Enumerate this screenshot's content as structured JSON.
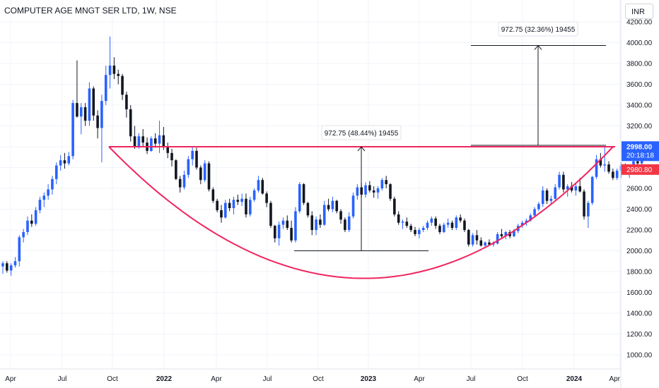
{
  "header": {
    "title": "COMPUTER AGE MNGT SER LTD, 1W, NSE",
    "currency": "INR"
  },
  "price_axis": {
    "last_price": "2998.00",
    "countdown": "20:18:18",
    "marker_price": "2980.80",
    "last_price_color": "#2962ff",
    "marker_color": "#f23645"
  },
  "annotations": {
    "measure_1": "972.75 (48.44%) 19455",
    "measure_2": "972.75 (32.36%) 19455"
  },
  "colors": {
    "up": "#2962ff",
    "down": "#131722",
    "pattern_line": "#f0245e",
    "grid": "#f0f3fa"
  },
  "chart_data": {
    "type": "candlestick",
    "title": "COMPUTER AGE MNGT SER LTD, 1W, NSE",
    "xlabel": "",
    "ylabel": "",
    "ylim": [
      880,
      4220
    ],
    "y_ticks": [
      "4200.00",
      "4000.00",
      "3800.00",
      "3600.00",
      "3400.00",
      "3200.00",
      "3000.00",
      "2800.00",
      "2600.00",
      "2400.00",
      "2200.00",
      "2000.00",
      "1800.00",
      "1600.00",
      "1400.00",
      "1200.00",
      "1000.00"
    ],
    "x_ticks": [
      {
        "label": "Apr",
        "bold": false
      },
      {
        "label": "Jul",
        "bold": false
      },
      {
        "label": "Oct",
        "bold": false
      },
      {
        "label": "2022",
        "bold": true
      },
      {
        "label": "Apr",
        "bold": false
      },
      {
        "label": "Jul",
        "bold": false
      },
      {
        "label": "Oct",
        "bold": false
      },
      {
        "label": "2023",
        "bold": true
      },
      {
        "label": "Apr",
        "bold": false
      },
      {
        "label": "Jul",
        "bold": false
      },
      {
        "label": "Oct",
        "bold": false
      },
      {
        "label": "2024",
        "bold": true
      },
      {
        "label": "Apr",
        "bold": false
      }
    ],
    "resistance_level": 3000,
    "cup_bottom": 1735,
    "target_level": 3973,
    "bars": [
      [
        1850,
        1900,
        1780,
        1880
      ],
      [
        1880,
        1900,
        1790,
        1810
      ],
      [
        1810,
        1880,
        1760,
        1860
      ],
      [
        1860,
        1940,
        1840,
        1900
      ],
      [
        1900,
        2150,
        1850,
        2130
      ],
      [
        2130,
        2210,
        2080,
        2180
      ],
      [
        2180,
        2330,
        2150,
        2290
      ],
      [
        2290,
        2350,
        2230,
        2260
      ],
      [
        2260,
        2420,
        2240,
        2390
      ],
      [
        2390,
        2520,
        2360,
        2490
      ],
      [
        2490,
        2560,
        2420,
        2530
      ],
      [
        2530,
        2640,
        2490,
        2590
      ],
      [
        2590,
        2720,
        2540,
        2690
      ],
      [
        2690,
        2850,
        2640,
        2820
      ],
      [
        2820,
        2920,
        2770,
        2870
      ],
      [
        2870,
        2940,
        2790,
        2840
      ],
      [
        2840,
        2950,
        2820,
        2910
      ],
      [
        2910,
        3450,
        2880,
        3420
      ],
      [
        3420,
        3830,
        3280,
        3290
      ],
      [
        3290,
        3420,
        3120,
        3380
      ],
      [
        3380,
        3420,
        3200,
        3250
      ],
      [
        3250,
        3620,
        3200,
        3560
      ],
      [
        3560,
        3580,
        3250,
        3300
      ],
      [
        3300,
        3350,
        3080,
        3180
      ],
      [
        3180,
        3500,
        2850,
        3440
      ],
      [
        3440,
        3780,
        3400,
        3690
      ],
      [
        3690,
        4060,
        3560,
        3780
      ],
      [
        3780,
        3860,
        3650,
        3700
      ],
      [
        3700,
        3740,
        3600,
        3680
      ],
      [
        3680,
        3700,
        3450,
        3500
      ],
      [
        3500,
        3530,
        3280,
        3360
      ],
      [
        3360,
        3400,
        3050,
        3100
      ],
      [
        3100,
        3200,
        2980,
        3000
      ],
      [
        3000,
        3130,
        2980,
        3100
      ],
      [
        3100,
        3170,
        3000,
        3040
      ],
      [
        3040,
        3090,
        2930,
        2960
      ],
      [
        2960,
        3100,
        2950,
        3080
      ],
      [
        3080,
        3130,
        2990,
        3030
      ],
      [
        3030,
        3250,
        2940,
        3110
      ],
      [
        3110,
        3190,
        2970,
        3000
      ],
      [
        3000,
        3040,
        2890,
        2940
      ],
      [
        2940,
        2980,
        2810,
        2870
      ],
      [
        2870,
        2880,
        2680,
        2690
      ],
      [
        2690,
        2720,
        2560,
        2610
      ],
      [
        2610,
        2770,
        2590,
        2730
      ],
      [
        2730,
        2910,
        2700,
        2880
      ],
      [
        2880,
        3000,
        2820,
        2960
      ],
      [
        2960,
        2990,
        2780,
        2800
      ],
      [
        2800,
        2820,
        2640,
        2680
      ],
      [
        2680,
        2870,
        2660,
        2840
      ],
      [
        2840,
        2860,
        2570,
        2590
      ],
      [
        2590,
        2610,
        2460,
        2480
      ],
      [
        2480,
        2500,
        2370,
        2390
      ],
      [
        2390,
        2440,
        2270,
        2320
      ],
      [
        2320,
        2490,
        2310,
        2460
      ],
      [
        2460,
        2500,
        2380,
        2410
      ],
      [
        2410,
        2520,
        2350,
        2490
      ],
      [
        2490,
        2540,
        2440,
        2470
      ],
      [
        2470,
        2550,
        2430,
        2500
      ],
      [
        2500,
        2550,
        2320,
        2350
      ],
      [
        2350,
        2520,
        2330,
        2490
      ],
      [
        2490,
        2600,
        2470,
        2580
      ],
      [
        2580,
        2720,
        2560,
        2680
      ],
      [
        2680,
        2700,
        2540,
        2550
      ],
      [
        2550,
        2570,
        2420,
        2460
      ],
      [
        2460,
        2480,
        2220,
        2240
      ],
      [
        2240,
        2250,
        2080,
        2120
      ],
      [
        2120,
        2280,
        2050,
        2250
      ],
      [
        2250,
        2320,
        2210,
        2290
      ],
      [
        2290,
        2340,
        2200,
        2220
      ],
      [
        2220,
        2290,
        2080,
        2100
      ],
      [
        2100,
        2420,
        2080,
        2380
      ],
      [
        2380,
        2660,
        2360,
        2640
      ],
      [
        2640,
        2650,
        2440,
        2460
      ],
      [
        2460,
        2470,
        2320,
        2340
      ],
      [
        2340,
        2380,
        2150,
        2200
      ],
      [
        2200,
        2330,
        2150,
        2300
      ],
      [
        2300,
        2350,
        2220,
        2250
      ],
      [
        2250,
        2480,
        2240,
        2440
      ],
      [
        2440,
        2500,
        2380,
        2400
      ],
      [
        2400,
        2520,
        2370,
        2480
      ],
      [
        2480,
        2490,
        2360,
        2380
      ],
      [
        2380,
        2400,
        2260,
        2300
      ],
      [
        2300,
        2320,
        2180,
        2200
      ],
      [
        2200,
        2370,
        2180,
        2330
      ],
      [
        2330,
        2560,
        2310,
        2530
      ],
      [
        2530,
        2640,
        2490,
        2610
      ],
      [
        2610,
        2650,
        2510,
        2540
      ],
      [
        2540,
        2660,
        2510,
        2630
      ],
      [
        2630,
        2670,
        2560,
        2580
      ],
      [
        2580,
        2620,
        2510,
        2560
      ],
      [
        2560,
        2620,
        2500,
        2600
      ],
      [
        2600,
        2700,
        2580,
        2680
      ],
      [
        2680,
        2720,
        2600,
        2640
      ],
      [
        2640,
        2650,
        2480,
        2500
      ],
      [
        2500,
        2520,
        2330,
        2350
      ],
      [
        2350,
        2380,
        2250,
        2270
      ],
      [
        2270,
        2300,
        2210,
        2280
      ],
      [
        2280,
        2320,
        2220,
        2240
      ],
      [
        2240,
        2260,
        2180,
        2200
      ],
      [
        2200,
        2230,
        2140,
        2160
      ],
      [
        2160,
        2220,
        2120,
        2200
      ],
      [
        2200,
        2240,
        2180,
        2220
      ],
      [
        2220,
        2290,
        2200,
        2270
      ],
      [
        2270,
        2330,
        2240,
        2310
      ],
      [
        2310,
        2330,
        2210,
        2240
      ],
      [
        2240,
        2260,
        2160,
        2180
      ],
      [
        2180,
        2270,
        2170,
        2250
      ],
      [
        2250,
        2310,
        2220,
        2270
      ],
      [
        2270,
        2290,
        2200,
        2220
      ],
      [
        2220,
        2340,
        2200,
        2320
      ],
      [
        2320,
        2350,
        2270,
        2290
      ],
      [
        2290,
        2310,
        2180,
        2200
      ],
      [
        2200,
        2210,
        2040,
        2060
      ],
      [
        2060,
        2170,
        2040,
        2150
      ],
      [
        2150,
        2200,
        2060,
        2100
      ],
      [
        2100,
        2130,
        2040,
        2050
      ],
      [
        2050,
        2090,
        2030,
        2080
      ],
      [
        2080,
        2110,
        2050,
        2060
      ],
      [
        2060,
        2090,
        2040,
        2070
      ],
      [
        2070,
        2180,
        2060,
        2160
      ],
      [
        2160,
        2210,
        2120,
        2140
      ],
      [
        2140,
        2190,
        2110,
        2180
      ],
      [
        2180,
        2200,
        2120,
        2140
      ],
      [
        2140,
        2210,
        2130,
        2190
      ],
      [
        2190,
        2260,
        2170,
        2240
      ],
      [
        2240,
        2290,
        2220,
        2270
      ],
      [
        2270,
        2310,
        2240,
        2290
      ],
      [
        2290,
        2360,
        2280,
        2340
      ],
      [
        2340,
        2420,
        2320,
        2400
      ],
      [
        2400,
        2470,
        2380,
        2450
      ],
      [
        2450,
        2620,
        2420,
        2580
      ],
      [
        2580,
        2600,
        2450,
        2480
      ],
      [
        2480,
        2530,
        2440,
        2500
      ],
      [
        2500,
        2640,
        2490,
        2610
      ],
      [
        2610,
        2760,
        2590,
        2730
      ],
      [
        2730,
        2760,
        2560,
        2590
      ],
      [
        2590,
        2640,
        2520,
        2620
      ],
      [
        2620,
        2660,
        2560,
        2580
      ],
      [
        2580,
        2650,
        2530,
        2620
      ],
      [
        2620,
        2700,
        2560,
        2570
      ],
      [
        2570,
        2590,
        2300,
        2330
      ],
      [
        2330,
        2480,
        2220,
        2460
      ],
      [
        2460,
        2720,
        2440,
        2710
      ],
      [
        2710,
        2920,
        2690,
        2880
      ],
      [
        2880,
        2940,
        2800,
        2820
      ],
      [
        2820,
        3000,
        2760,
        2830
      ],
      [
        2830,
        2860,
        2740,
        2760
      ],
      [
        2760,
        2790,
        2680,
        2700
      ],
      [
        2700,
        2790,
        2680,
        2770
      ],
      [
        2770,
        2850,
        2700,
        2820
      ],
      [
        2820,
        2840,
        2740,
        2760
      ],
      [
        2760,
        2830,
        2700,
        2790
      ],
      [
        2790,
        2880,
        2770,
        2860
      ],
      [
        2860,
        2920,
        2800,
        2840
      ],
      [
        2840,
        3030,
        2820,
        2960
      ],
      [
        2960,
        3020,
        2880,
        2900
      ],
      [
        2900,
        3040,
        2890,
        2998
      ]
    ]
  }
}
